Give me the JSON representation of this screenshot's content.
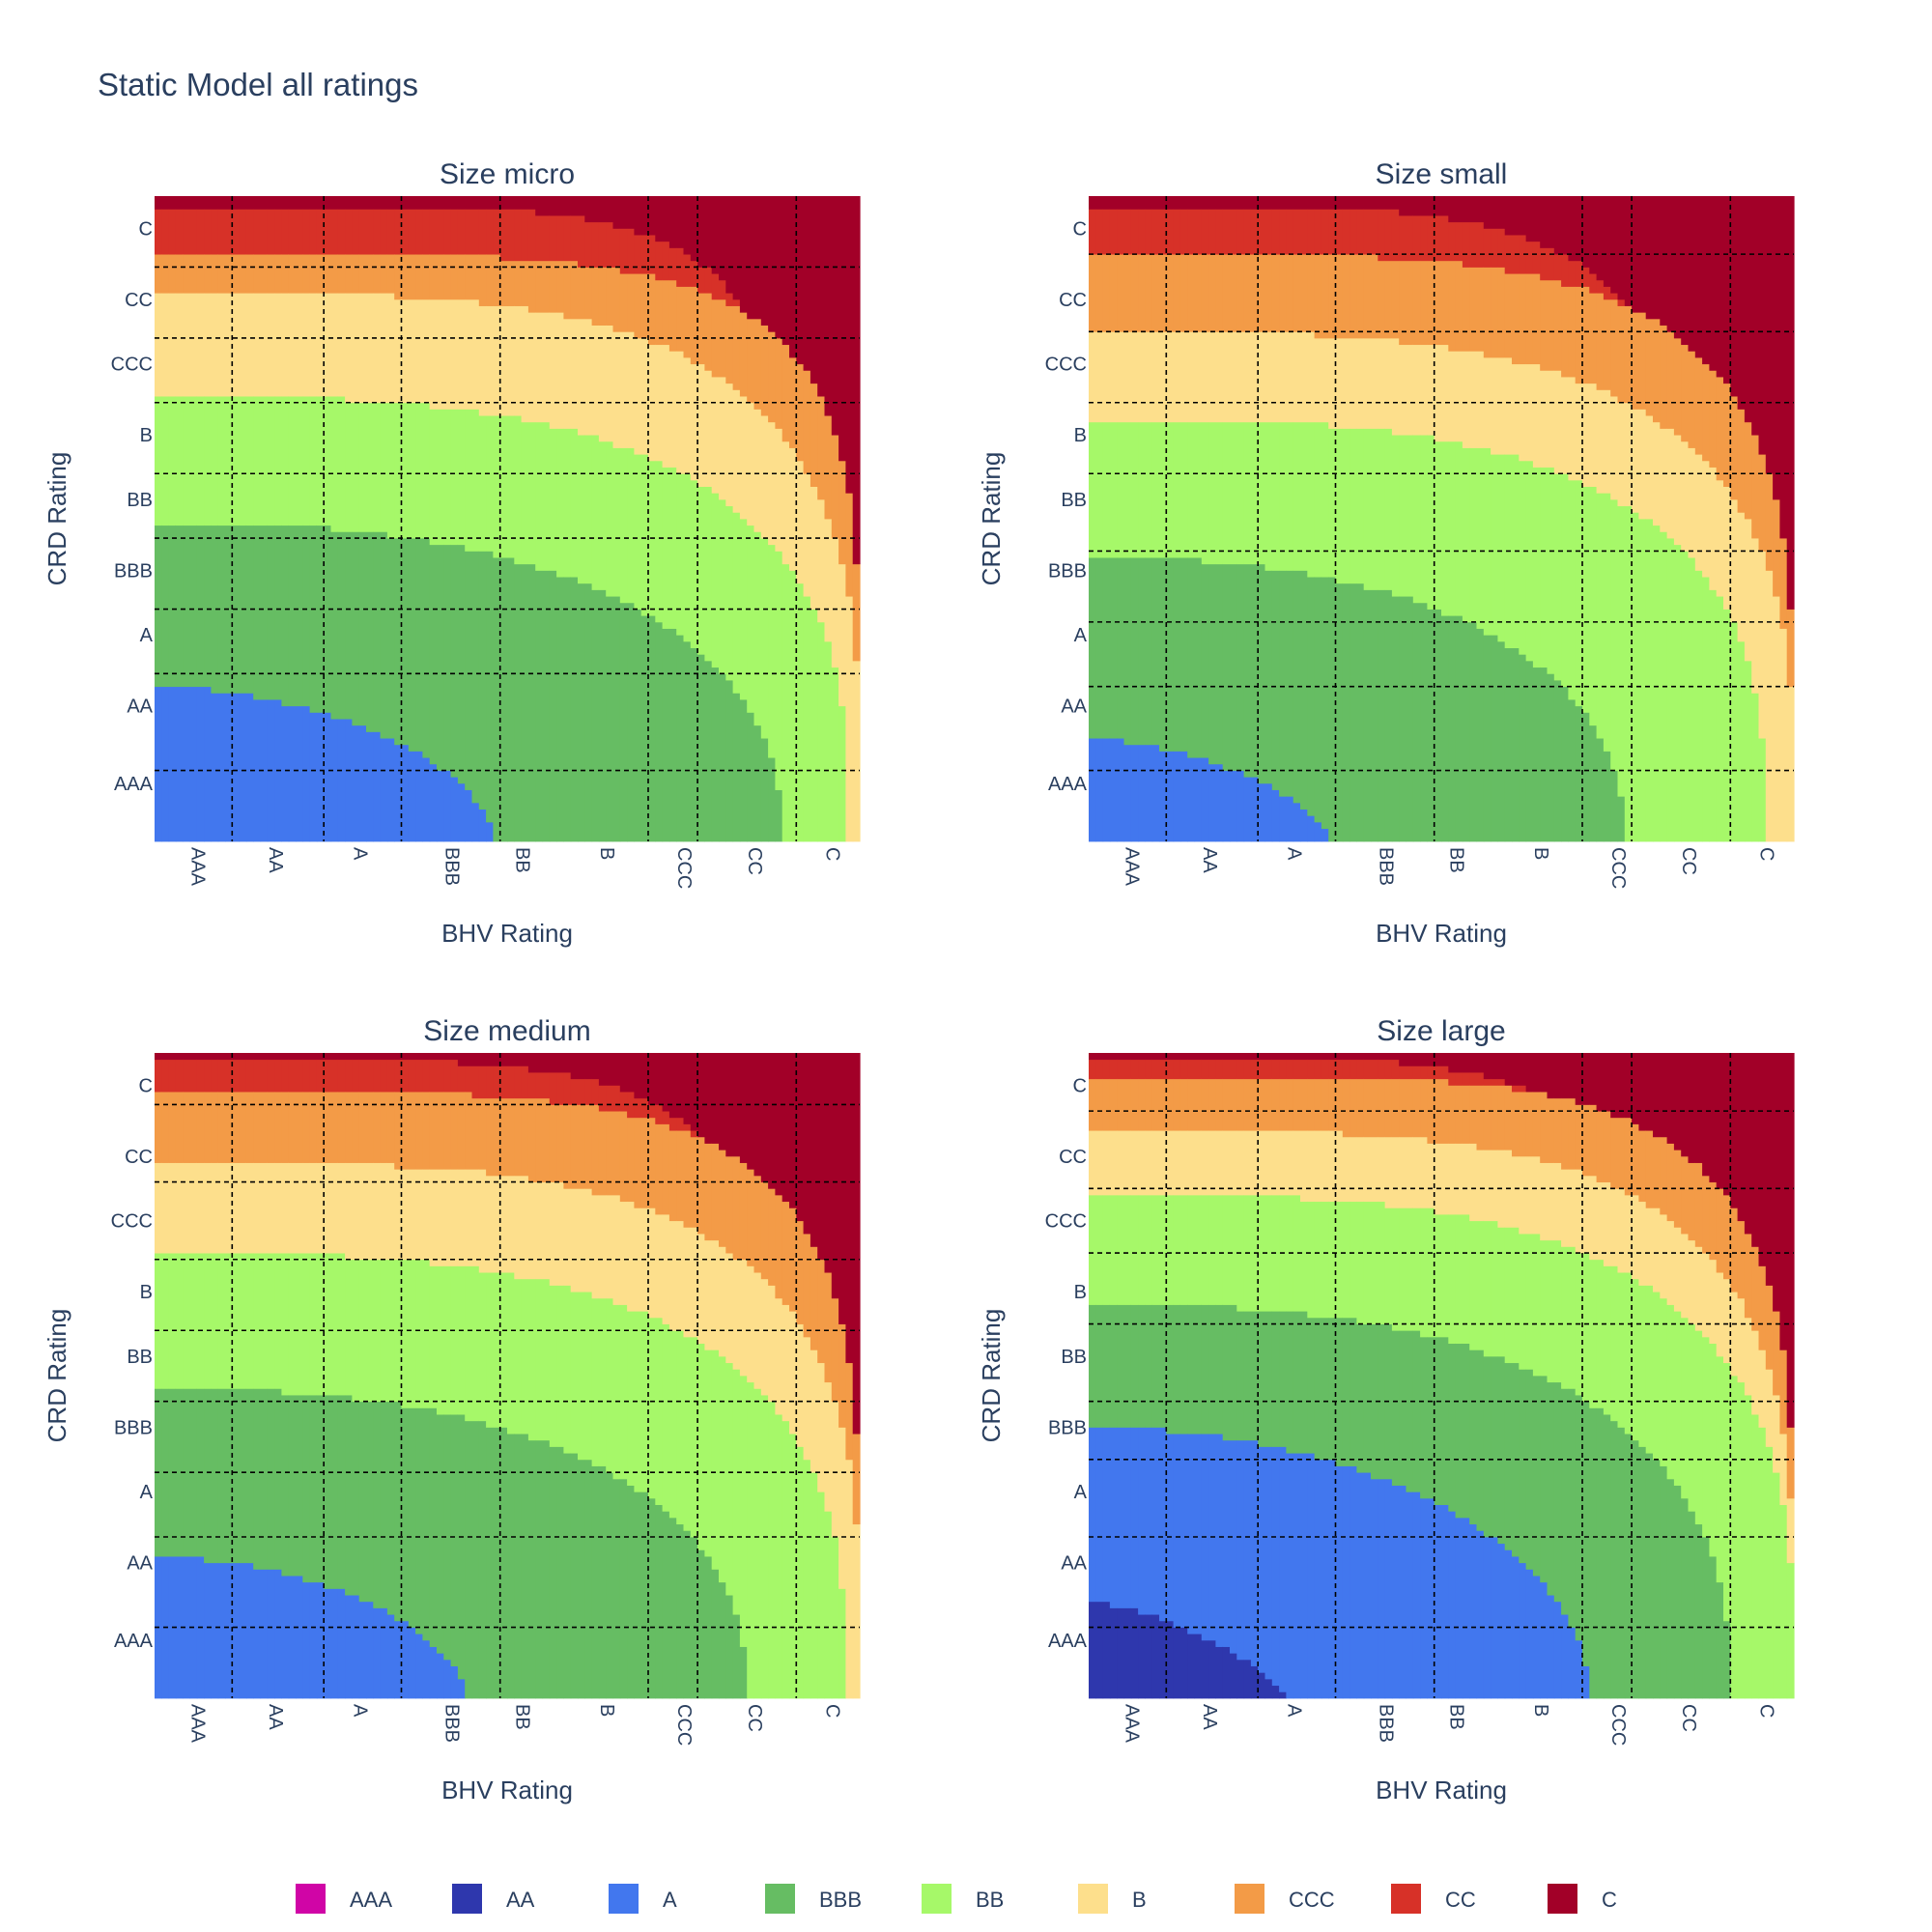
{
  "title": "Static Model all ratings",
  "chart_data": {
    "type": "heatmap",
    "ratings": [
      "AAA",
      "AA",
      "A",
      "BBB",
      "BB",
      "B",
      "CCC",
      "CC",
      "C"
    ],
    "colors": {
      "AAA": "#d005a6",
      "AA": "#2e37ad",
      "A": "#4277ee",
      "BBB": "#66bd63",
      "BB": "#a6f869",
      "B": "#fddf8c",
      "CCC": "#f39b47",
      "CC": "#d73128",
      "C": "#a20028"
    },
    "legend_position": "bottom",
    "x_tick_positions": [
      0.06,
      0.17,
      0.29,
      0.42,
      0.52,
      0.64,
      0.75,
      0.85,
      0.96
    ],
    "y_tick_positions": [
      0.05,
      0.16,
      0.26,
      0.37,
      0.47,
      0.58,
      0.68,
      0.79,
      0.91
    ],
    "panels": [
      {
        "title": "Size micro",
        "xlabel": "BHV Rating",
        "ylabel": "CRD Rating",
        "x_tick_labels": [
          "AAA",
          "AA",
          "A",
          "BBB",
          "BB",
          "B",
          "CCC",
          "CC",
          "C"
        ],
        "y_tick_labels": [
          "C",
          "CC",
          "CCC",
          "B",
          "BB",
          "BBB",
          "A",
          "AA",
          "AAA"
        ],
        "x_grid": [
          0.11,
          0.24,
          0.35,
          0.49,
          0.7,
          0.77,
          0.91
        ],
        "y_grid": [
          0.11,
          0.22,
          0.32,
          0.43,
          0.53,
          0.64,
          0.74,
          0.89
        ],
        "boundaries": [
          {
            "class": "AAA",
            "upper": null
          },
          {
            "class": "AA",
            "upper": null
          },
          {
            "class": "A",
            "upper": {
              "q0": 0.24,
              "xmax": 0.48,
              "p": 1.8
            }
          },
          {
            "class": "BBB",
            "upper": {
              "q0": 0.495,
              "xmax": 0.89,
              "p": 2.4
            }
          },
          {
            "class": "BB",
            "upper": {
              "q0": 0.69,
              "xmax": 0.985,
              "p": 3.0
            }
          },
          {
            "class": "B",
            "upper": {
              "q0": 0.85,
              "xmax": 1.0,
              "p": 3.6
            }
          },
          {
            "class": "CCC",
            "upper": {
              "q0": 0.91,
              "xmax": 1.0,
              "p": 5.0
            }
          },
          {
            "class": "CC",
            "upper": {
              "q0": 0.985,
              "xmax": 0.91,
              "p": 5.5
            }
          },
          {
            "class": "C",
            "upper": {
              "q0": 1.0,
              "xmax": 1.0,
              "p": 1.0
            }
          }
        ]
      },
      {
        "title": "Size small",
        "xlabel": "BHV Rating",
        "ylabel": "CRD Rating",
        "x_tick_labels": [
          "AAA",
          "AA",
          "A",
          "BBB",
          "BB",
          "B",
          "CCC",
          "CC",
          "C"
        ],
        "y_tick_labels": [
          "C",
          "CC",
          "CCC",
          "B",
          "BB",
          "BBB",
          "A",
          "AA",
          "AAA"
        ],
        "x_grid": [
          0.11,
          0.24,
          0.35,
          0.49,
          0.7,
          0.77,
          0.91
        ],
        "y_grid": [
          0.09,
          0.21,
          0.32,
          0.43,
          0.55,
          0.66,
          0.76,
          0.89
        ],
        "boundaries": [
          {
            "class": "AAA",
            "upper": null
          },
          {
            "class": "AA",
            "upper": null
          },
          {
            "class": "A",
            "upper": {
              "q0": 0.16,
              "xmax": 0.34,
              "p": 1.6
            }
          },
          {
            "class": "BBB",
            "upper": {
              "q0": 0.44,
              "xmax": 0.76,
              "p": 2.3
            }
          },
          {
            "class": "BB",
            "upper": {
              "q0": 0.655,
              "xmax": 0.96,
              "p": 3.0
            }
          },
          {
            "class": "B",
            "upper": {
              "q0": 0.79,
              "xmax": 1.0,
              "p": 3.4
            }
          },
          {
            "class": "CCC",
            "upper": {
              "q0": 0.91,
              "xmax": 1.0,
              "p": 4.2
            }
          },
          {
            "class": "CC",
            "upper": {
              "q0": 0.985,
              "xmax": 0.88,
              "p": 4.5
            }
          },
          {
            "class": "C",
            "upper": {
              "q0": 1.0,
              "xmax": 1.0,
              "p": 1.0
            }
          }
        ]
      },
      {
        "title": "Size medium",
        "xlabel": "BHV Rating",
        "ylabel": "CRD Rating",
        "x_tick_labels": [
          "AAA",
          "AA",
          "A",
          "BBB",
          "BB",
          "B",
          "CCC",
          "CC",
          "C"
        ],
        "y_tick_labels": [
          "C",
          "CC",
          "CCC",
          "B",
          "BB",
          "BBB",
          "A",
          "AA",
          "AAA"
        ],
        "x_grid": [
          0.11,
          0.24,
          0.35,
          0.49,
          0.7,
          0.77,
          0.91
        ],
        "y_grid": [
          0.08,
          0.2,
          0.32,
          0.43,
          0.54,
          0.65,
          0.75,
          0.89
        ],
        "boundaries": [
          {
            "class": "AAA",
            "upper": null
          },
          {
            "class": "AA",
            "upper": null
          },
          {
            "class": "A",
            "upper": {
              "q0": 0.22,
              "xmax": 0.44,
              "p": 1.8
            }
          },
          {
            "class": "BBB",
            "upper": {
              "q0": 0.48,
              "xmax": 0.84,
              "p": 2.4
            }
          },
          {
            "class": "BB",
            "upper": {
              "q0": 0.69,
              "xmax": 0.98,
              "p": 3.0
            }
          },
          {
            "class": "B",
            "upper": {
              "q0": 0.83,
              "xmax": 1.0,
              "p": 3.6
            }
          },
          {
            "class": "CCC",
            "upper": {
              "q0": 0.94,
              "xmax": 1.0,
              "p": 4.6
            }
          },
          {
            "class": "CC",
            "upper": {
              "q0": 0.99,
              "xmax": 0.9,
              "p": 5.0
            }
          },
          {
            "class": "C",
            "upper": {
              "q0": 1.0,
              "xmax": 1.0,
              "p": 1.0
            }
          }
        ]
      },
      {
        "title": "Size large",
        "xlabel": "BHV Rating",
        "ylabel": "CRD Rating",
        "x_tick_labels": [
          "AAA",
          "AA",
          "A",
          "BBB",
          "BB",
          "B",
          "CCC",
          "CC",
          "C"
        ],
        "y_tick_labels": [
          "C",
          "CC",
          "CCC",
          "B",
          "BB",
          "BBB",
          "A",
          "AA",
          "AAA"
        ],
        "x_grid": [
          0.11,
          0.24,
          0.35,
          0.49,
          0.7,
          0.77,
          0.91
        ],
        "y_grid": [
          0.09,
          0.21,
          0.31,
          0.42,
          0.54,
          0.63,
          0.75,
          0.89
        ],
        "boundaries": [
          {
            "class": "AAA",
            "upper": null
          },
          {
            "class": "AA",
            "upper": {
              "q0": 0.15,
              "xmax": 0.28,
              "p": 1.4
            }
          },
          {
            "class": "A",
            "upper": {
              "q0": 0.42,
              "xmax": 0.71,
              "p": 2.0
            }
          },
          {
            "class": "BBB",
            "upper": {
              "q0": 0.61,
              "xmax": 0.91,
              "p": 2.6
            }
          },
          {
            "class": "BB",
            "upper": {
              "q0": 0.78,
              "xmax": 1.0,
              "p": 3.2
            }
          },
          {
            "class": "B",
            "upper": {
              "q0": 0.88,
              "xmax": 1.0,
              "p": 3.8
            }
          },
          {
            "class": "CCC",
            "upper": {
              "q0": 0.965,
              "xmax": 1.0,
              "p": 4.6
            }
          },
          {
            "class": "CC",
            "upper": {
              "q0": 0.995,
              "xmax": 0.88,
              "p": 4.5
            }
          },
          {
            "class": "C",
            "upper": {
              "q0": 1.0,
              "xmax": 1.0,
              "p": 1.0
            }
          }
        ]
      }
    ]
  }
}
